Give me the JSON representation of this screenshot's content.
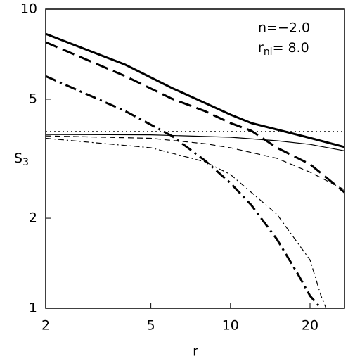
{
  "chart_data": {
    "type": "line",
    "xlabel": "r",
    "ylabel": "S",
    "ylabel_sub": "3",
    "annotations": [
      {
        "text": "n=−2.0"
      },
      {
        "text": "r",
        "sub": "nl",
        "tail": "= 8.0"
      }
    ],
    "xscale": "log",
    "yscale": "log",
    "xlim": [
      2,
      27
    ],
    "ylim": [
      1,
      10
    ],
    "xticks": [
      2,
      5,
      10,
      20
    ],
    "yticks": [
      1,
      2,
      5,
      10
    ],
    "series": [
      {
        "color": "#000000",
        "width": 3,
        "dash": "none",
        "x": [
          2,
          4,
          6,
          8,
          10,
          12,
          20,
          27
        ],
        "values": [
          8.27,
          6.52,
          5.45,
          4.86,
          4.44,
          4.16,
          3.71,
          3.46
        ]
      },
      {
        "color": "#000000",
        "width": 3,
        "dash": "18,8",
        "x": [
          2,
          4,
          6,
          8,
          10,
          12,
          15,
          20,
          27
        ],
        "values": [
          7.75,
          5.97,
          5.02,
          4.56,
          4.16,
          3.92,
          3.44,
          3.03,
          2.44
        ]
      },
      {
        "color": "#000000",
        "width": 3,
        "dash": "16,6,3,6",
        "x": [
          2,
          4,
          6,
          8,
          10,
          12,
          15,
          18,
          20,
          22
        ],
        "values": [
          5.97,
          4.56,
          3.77,
          3.12,
          2.62,
          2.21,
          1.7,
          1.3,
          1.1,
          1.0
        ]
      },
      {
        "color": "#000000",
        "width": 1.2,
        "dash": "none",
        "x": [
          2,
          5,
          10,
          15,
          20,
          27
        ],
        "values": [
          3.81,
          3.8,
          3.73,
          3.63,
          3.53,
          3.36
        ]
      },
      {
        "color": "#000000",
        "width": 1.2,
        "dash": "2,4",
        "x": [
          2,
          27
        ],
        "values": [
          3.9,
          3.9
        ]
      },
      {
        "color": "#000000",
        "width": 1.2,
        "dash": "8,5",
        "x": [
          2,
          5,
          8,
          10,
          15,
          20,
          27
        ],
        "values": [
          3.77,
          3.7,
          3.55,
          3.44,
          3.17,
          2.85,
          2.49
        ]
      },
      {
        "color": "#000000",
        "width": 1.2,
        "dash": "8,4,2,4",
        "x": [
          2,
          5,
          8,
          10,
          15,
          20,
          22,
          23
        ],
        "values": [
          3.7,
          3.44,
          3.09,
          2.8,
          2.06,
          1.45,
          1.1,
          1.0
        ]
      }
    ]
  }
}
